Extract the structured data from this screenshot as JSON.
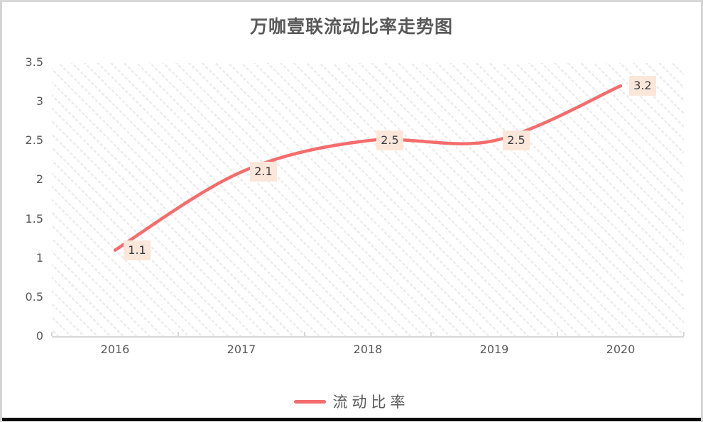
{
  "page": {
    "frame_border_color": "#d8d8d8",
    "bottom_bar_color": "#0b0b0b",
    "background": "#ffffff"
  },
  "chart_data": {
    "type": "line",
    "title": "万咖壹联流动比率走势图",
    "categories": [
      "2016",
      "2017",
      "2018",
      "2019",
      "2020"
    ],
    "series": [
      {
        "name": "流动比率",
        "values": [
          1.1,
          2.1,
          2.5,
          2.5,
          3.2
        ],
        "color": "#f56c6c"
      }
    ],
    "data_labels": [
      "1.1",
      "2.1",
      "2.5",
      "2.5",
      "3.2"
    ],
    "data_label_style": {
      "fill": "#fbe7d9",
      "text_color": "#3b3b44"
    },
    "xlabel": "",
    "ylabel": "",
    "ylim": [
      0,
      3.5
    ],
    "yticks": [
      0,
      0.5,
      1,
      1.5,
      2,
      2.5,
      3,
      3.5
    ],
    "grid": false,
    "smooth": true,
    "legend_position": "bottom",
    "axis_color": "#d7d7d7",
    "tick_label_color": "#595959",
    "title_color": "#595959",
    "plot_pattern_color": "#ececec",
    "line_width": 4.5
  }
}
